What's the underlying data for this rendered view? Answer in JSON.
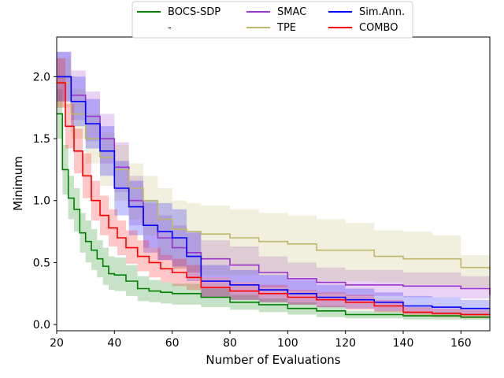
{
  "chart_data": {
    "type": "line",
    "title": "",
    "xlabel": "Number of Evaluations",
    "ylabel": "Minimum",
    "xlim": [
      20,
      170
    ],
    "ylim": [
      -0.05,
      2.32
    ],
    "xticks": [
      20,
      40,
      60,
      80,
      100,
      120,
      140,
      160
    ],
    "yticks": [
      0.0,
      0.5,
      1.0,
      1.5,
      2.0
    ],
    "xtick_labels": [
      "20",
      "40",
      "60",
      "80",
      "100",
      "120",
      "140",
      "160"
    ],
    "ytick_labels": [
      "0.0",
      "0.5",
      "1.0",
      "1.5",
      "2.0"
    ],
    "legend_position": "top-center",
    "legend_placeholder_label": "-",
    "series": [
      {
        "name": "BOCS-SDP",
        "color": "#008000",
        "x": [
          20,
          22,
          24,
          26,
          28,
          30,
          32,
          34,
          36,
          38,
          40,
          44,
          48,
          52,
          56,
          60,
          70,
          80,
          90,
          100,
          110,
          120,
          140,
          160,
          170
        ],
        "mean": [
          1.7,
          1.25,
          1.02,
          0.93,
          0.74,
          0.67,
          0.6,
          0.53,
          0.47,
          0.41,
          0.4,
          0.35,
          0.29,
          0.27,
          0.26,
          0.25,
          0.22,
          0.18,
          0.16,
          0.13,
          0.11,
          0.08,
          0.07,
          0.06,
          0.06
        ],
        "lower": [
          1.5,
          1.05,
          0.85,
          0.75,
          0.58,
          0.5,
          0.44,
          0.38,
          0.32,
          0.28,
          0.27,
          0.23,
          0.19,
          0.18,
          0.17,
          0.16,
          0.14,
          0.12,
          0.1,
          0.08,
          0.06,
          0.05,
          0.04,
          0.04,
          0.04
        ],
        "upper": [
          1.9,
          1.45,
          1.2,
          1.1,
          0.9,
          0.84,
          0.77,
          0.68,
          0.62,
          0.55,
          0.54,
          0.48,
          0.39,
          0.36,
          0.34,
          0.33,
          0.29,
          0.24,
          0.21,
          0.18,
          0.15,
          0.11,
          0.1,
          0.09,
          0.09
        ]
      },
      {
        "name": "SMAC",
        "color": "#9933cc",
        "x": [
          20,
          25,
          30,
          35,
          40,
          45,
          50,
          55,
          60,
          65,
          70,
          80,
          90,
          100,
          110,
          120,
          140,
          160,
          170
        ],
        "mean": [
          2.0,
          1.85,
          1.68,
          1.5,
          1.27,
          1.0,
          0.8,
          0.7,
          0.62,
          0.58,
          0.53,
          0.48,
          0.42,
          0.37,
          0.34,
          0.32,
          0.31,
          0.29,
          0.24
        ],
        "lower": [
          1.8,
          1.65,
          1.48,
          1.3,
          1.07,
          0.8,
          0.62,
          0.52,
          0.45,
          0.42,
          0.38,
          0.34,
          0.3,
          0.27,
          0.25,
          0.23,
          0.22,
          0.21,
          0.18
        ],
        "upper": [
          2.2,
          2.05,
          1.88,
          1.7,
          1.47,
          1.2,
          0.98,
          0.88,
          0.8,
          0.74,
          0.68,
          0.63,
          0.55,
          0.5,
          0.46,
          0.44,
          0.42,
          0.39,
          0.33
        ]
      },
      {
        "name": "TPE",
        "color": "#bdb76b",
        "x": [
          20,
          25,
          30,
          35,
          40,
          45,
          50,
          55,
          60,
          65,
          70,
          80,
          90,
          100,
          110,
          120,
          130,
          140,
          150,
          160,
          170
        ],
        "mean": [
          1.95,
          1.7,
          1.5,
          1.35,
          1.25,
          1.1,
          1.0,
          0.85,
          0.77,
          0.75,
          0.73,
          0.7,
          0.67,
          0.65,
          0.6,
          0.6,
          0.55,
          0.53,
          0.53,
          0.46,
          0.44
        ],
        "lower": [
          1.75,
          1.5,
          1.3,
          1.12,
          1.0,
          0.85,
          0.72,
          0.55,
          0.45,
          0.42,
          0.4,
          0.4,
          0.4,
          0.38,
          0.35,
          0.35,
          0.34,
          0.32,
          0.32,
          0.3,
          0.28
        ],
        "upper": [
          2.15,
          1.9,
          1.7,
          1.55,
          1.45,
          1.3,
          1.2,
          1.1,
          1.0,
          0.98,
          0.96,
          0.93,
          0.9,
          0.88,
          0.85,
          0.82,
          0.76,
          0.75,
          0.72,
          0.56,
          0.55
        ]
      },
      {
        "name": "Sim.Ann.",
        "color": "#0000ff",
        "x": [
          20,
          25,
          30,
          35,
          40,
          45,
          50,
          55,
          60,
          65,
          70,
          80,
          90,
          100,
          110,
          120,
          130,
          140,
          150,
          160,
          170
        ],
        "mean": [
          2.0,
          1.8,
          1.62,
          1.4,
          1.1,
          0.95,
          0.8,
          0.75,
          0.7,
          0.55,
          0.35,
          0.32,
          0.28,
          0.25,
          0.22,
          0.2,
          0.18,
          0.15,
          0.14,
          0.13,
          0.13
        ],
        "lower": [
          1.8,
          1.6,
          1.42,
          1.2,
          0.88,
          0.72,
          0.58,
          0.52,
          0.47,
          0.35,
          0.22,
          0.2,
          0.18,
          0.16,
          0.14,
          0.13,
          0.11,
          0.09,
          0.08,
          0.08,
          0.08
        ],
        "upper": [
          2.2,
          2.0,
          1.82,
          1.6,
          1.32,
          1.16,
          1.0,
          0.98,
          0.93,
          0.75,
          0.48,
          0.44,
          0.4,
          0.36,
          0.32,
          0.29,
          0.26,
          0.23,
          0.22,
          0.2,
          0.2
        ]
      },
      {
        "name": "COMBO",
        "color": "#ff0000",
        "x": [
          20,
          23,
          26,
          29,
          32,
          35,
          38,
          41,
          44,
          48,
          52,
          56,
          60,
          65,
          70,
          80,
          90,
          100,
          110,
          120,
          130,
          140,
          150,
          160,
          170
        ],
        "mean": [
          1.95,
          1.6,
          1.4,
          1.2,
          1.0,
          0.88,
          0.78,
          0.7,
          0.62,
          0.55,
          0.5,
          0.45,
          0.42,
          0.38,
          0.3,
          0.27,
          0.25,
          0.22,
          0.2,
          0.18,
          0.15,
          0.1,
          0.09,
          0.08,
          0.08
        ],
        "lower": [
          1.75,
          1.42,
          1.22,
          1.02,
          0.84,
          0.72,
          0.63,
          0.56,
          0.49,
          0.43,
          0.38,
          0.34,
          0.31,
          0.28,
          0.22,
          0.2,
          0.18,
          0.16,
          0.14,
          0.12,
          0.1,
          0.07,
          0.06,
          0.05,
          0.05
        ],
        "upper": [
          2.15,
          1.78,
          1.58,
          1.38,
          1.16,
          1.04,
          0.93,
          0.84,
          0.76,
          0.68,
          0.62,
          0.56,
          0.53,
          0.48,
          0.38,
          0.34,
          0.32,
          0.28,
          0.26,
          0.24,
          0.2,
          0.14,
          0.13,
          0.12,
          0.11
        ]
      }
    ]
  }
}
